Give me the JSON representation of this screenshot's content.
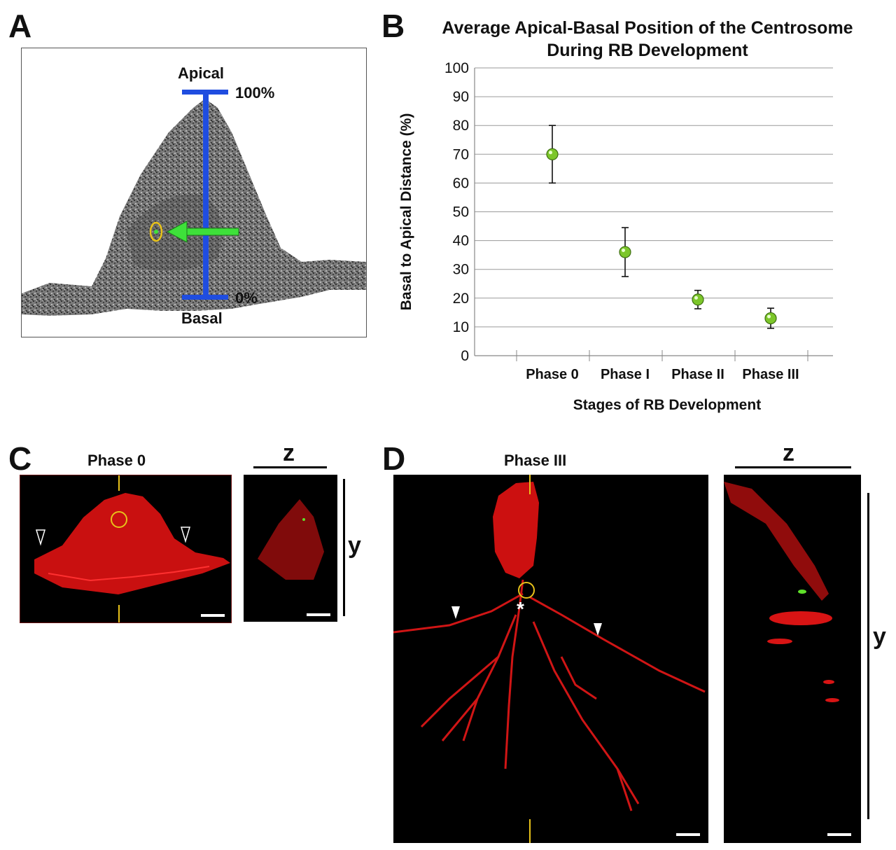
{
  "panel_labels": {
    "a": "A",
    "b": "B",
    "c": "C",
    "d": "D"
  },
  "panelA": {
    "apical_label": "Apical",
    "basal_label": "Basal",
    "top_pct": "100%",
    "bottom_pct": "0%"
  },
  "panelC": {
    "title": "Phase 0",
    "z_label": "z",
    "y_label": "y"
  },
  "panelD": {
    "title": "Phase III",
    "z_label": "z",
    "y_label": "y",
    "asterisk": "*"
  },
  "colors": {
    "bar_blue": "#1f4de0",
    "arrow_green": "#3ee03a",
    "circle_yellow": "#e8c21a",
    "cell_red": "#e01010",
    "dot_green": "#7cc62a"
  },
  "chart_data": {
    "type": "scatter",
    "title": "Average Apical-Basal Position of the Centrosome During RB Development",
    "title_line1": "Average Apical-Basal Position of the Centrosome",
    "title_line2": "During RB Development",
    "xlabel": "Stages of RB Development",
    "ylabel": "Basal to Apical Distance (%)",
    "categories": [
      "Phase 0",
      "Phase I",
      "Phase II",
      "Phase III"
    ],
    "values": [
      70,
      36,
      19.5,
      13
    ],
    "error": [
      10,
      8.5,
      3.2,
      3.5
    ],
    "ylim": [
      0,
      100
    ],
    "yticks": [
      0,
      10,
      20,
      30,
      40,
      50,
      60,
      70,
      80,
      90,
      100
    ],
    "grid": true
  }
}
